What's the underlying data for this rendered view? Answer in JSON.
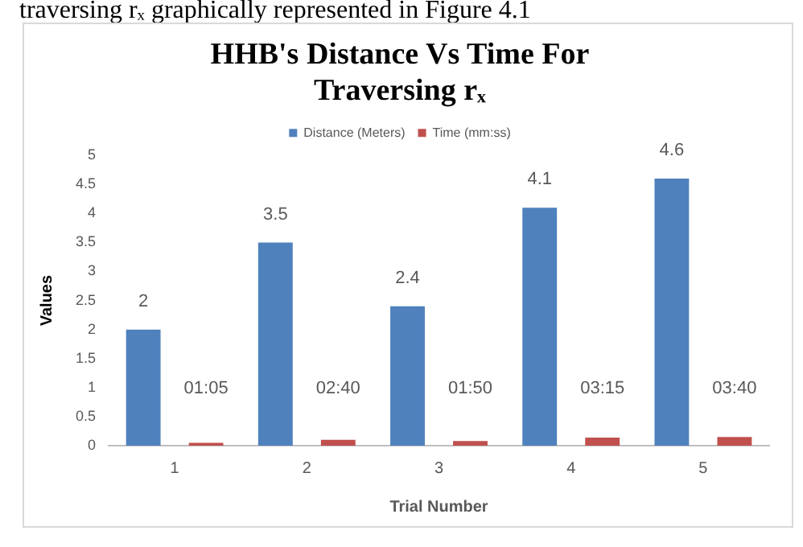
{
  "chart_data": {
    "type": "bar",
    "title": "HHB's Distance Vs Time For Traversing rₓ",
    "xlabel": "Trial Number",
    "ylabel": "Values",
    "annotations": [
      "traversing rₓ graphically represented in Figure 4.1",
      "01:05",
      "02:40",
      "01:50",
      "03:15",
      "03:40"
    ],
    "categories": [
      "1",
      "2",
      "3",
      "4",
      "5"
    ],
    "series": [
      {
        "name": "Distance (Meters)",
        "color": "#4f81bd",
        "values": [
          2,
          3.5,
          2.4,
          4.1,
          4.6
        ],
        "value_labels": [
          "2",
          "3.5",
          "2.4",
          "4.1",
          "4.6"
        ]
      },
      {
        "name": "Time (mm:ss)",
        "color": "#c0504d",
        "values": [
          0.05,
          0.1,
          0.08,
          0.14,
          0.15
        ]
      }
    ],
    "ylim": [
      0,
      5
    ],
    "yticks": [
      0,
      0.5,
      1,
      1.5,
      2,
      2.5,
      3,
      3.5,
      4,
      4.5,
      5
    ],
    "grid": false,
    "legend": "top"
  }
}
